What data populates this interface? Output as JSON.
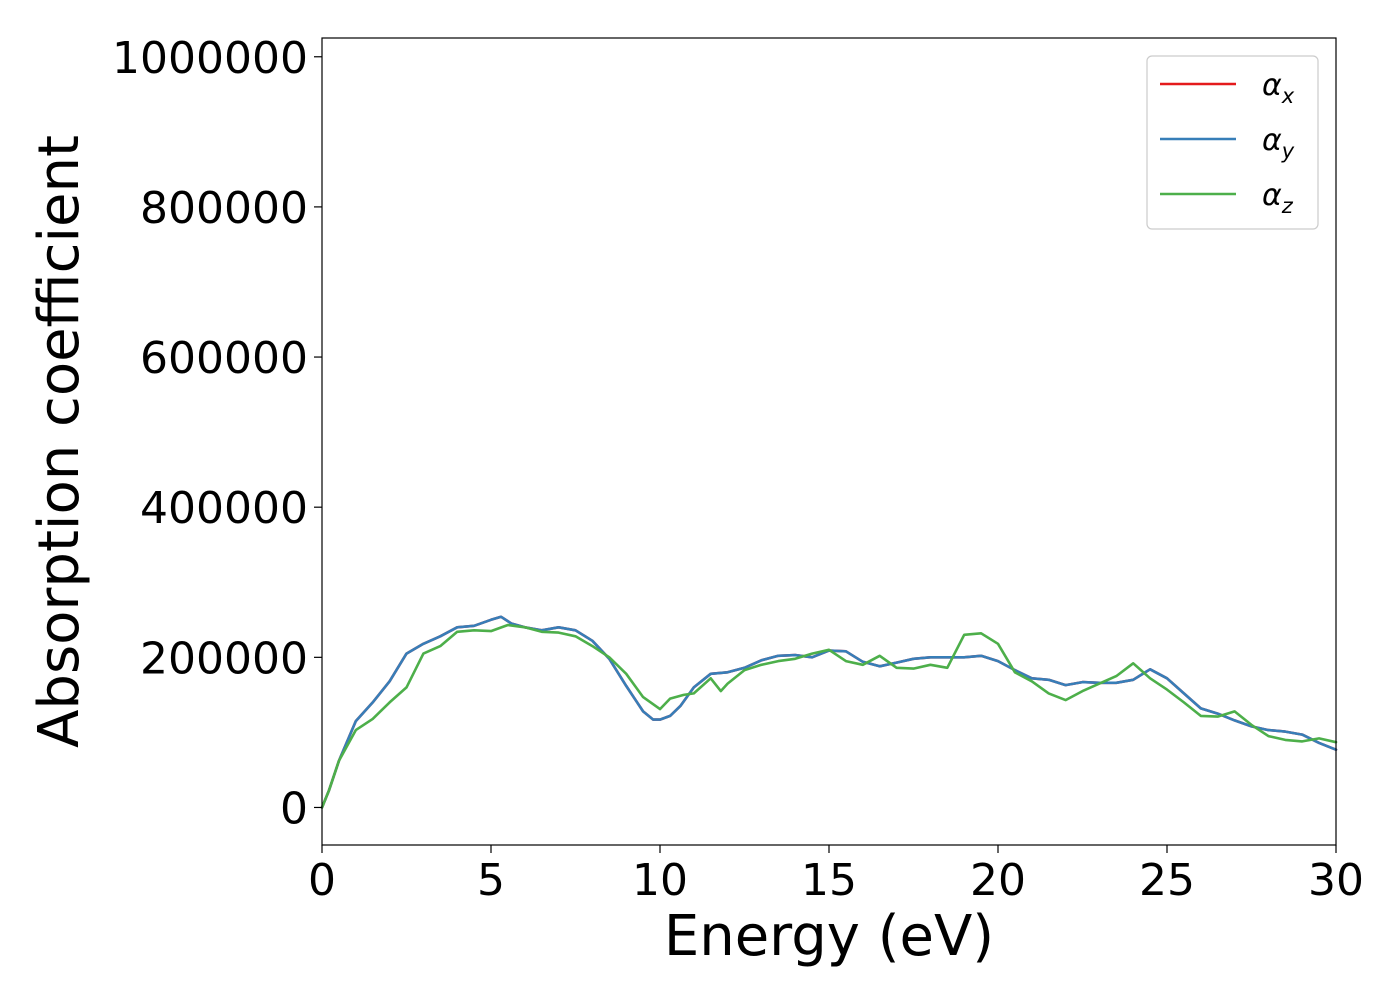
{
  "chart_data": {
    "type": "line",
    "title": "",
    "xlabel": "Energy (eV)",
    "ylabel": "Absorption coefficient",
    "xlim": [
      0,
      30
    ],
    "ylim": [
      -50000,
      1025000
    ],
    "xticks": [
      0,
      5,
      10,
      15,
      20,
      25,
      30
    ],
    "xtick_labels": [
      "0",
      "5",
      "10",
      "15",
      "20",
      "25",
      "30"
    ],
    "yticks": [
      0,
      200000,
      400000,
      600000,
      800000,
      1000000
    ],
    "ytick_labels": [
      "0",
      "200000",
      "400000",
      "600000",
      "800000",
      "1000000"
    ],
    "grid": false,
    "legend_position": "top-right",
    "series": [
      {
        "name": "α_x",
        "legend_main": "α",
        "legend_sub": "x",
        "color": "#e41a1c",
        "x": [
          0,
          0.2,
          0.5,
          1,
          1.5,
          2,
          2.5,
          3,
          3.5,
          4,
          4.5,
          5,
          5.3,
          5.6,
          6,
          6.5,
          7,
          7.5,
          8,
          8.5,
          9,
          9.5,
          9.8,
          10,
          10.3,
          10.6,
          11,
          11.5,
          12,
          12.5,
          13,
          13.5,
          14,
          14.5,
          15,
          15.5,
          16,
          16.5,
          17,
          17.5,
          18,
          18.5,
          19,
          19.5,
          20,
          20.5,
          21,
          21.5,
          22,
          22.5,
          23,
          23.5,
          24,
          24.5,
          25,
          25.5,
          26,
          26.5,
          27,
          27.5,
          28,
          28.5,
          29,
          29.5,
          30
        ],
        "y": [
          0,
          22000,
          62000,
          115000,
          140000,
          168000,
          205000,
          218000,
          228000,
          240000,
          242000,
          250000,
          254000,
          245000,
          240000,
          236000,
          240000,
          236000,
          222000,
          198000,
          162000,
          128000,
          117000,
          117000,
          122000,
          135000,
          160000,
          178000,
          180000,
          186000,
          196000,
          202000,
          203000,
          200000,
          209000,
          208000,
          194000,
          188000,
          193000,
          198000,
          200000,
          200000,
          200000,
          202000,
          195000,
          183000,
          172000,
          170000,
          163000,
          167000,
          166000,
          166000,
          170000,
          184000,
          172000,
          152000,
          132000,
          125000,
          116000,
          108000,
          103000,
          101000,
          97000,
          86000,
          77000
        ]
      },
      {
        "name": "α_y",
        "legend_main": "α",
        "legend_sub": "y",
        "color": "#377eb8",
        "x": [
          0,
          0.2,
          0.5,
          1,
          1.5,
          2,
          2.5,
          3,
          3.5,
          4,
          4.5,
          5,
          5.3,
          5.6,
          6,
          6.5,
          7,
          7.5,
          8,
          8.5,
          9,
          9.5,
          9.8,
          10,
          10.3,
          10.6,
          11,
          11.5,
          12,
          12.5,
          13,
          13.5,
          14,
          14.5,
          15,
          15.5,
          16,
          16.5,
          17,
          17.5,
          18,
          18.5,
          19,
          19.5,
          20,
          20.5,
          21,
          21.5,
          22,
          22.5,
          23,
          23.5,
          24,
          24.5,
          25,
          25.5,
          26,
          26.5,
          27,
          27.5,
          28,
          28.5,
          29,
          29.5,
          30
        ],
        "y": [
          0,
          22000,
          62000,
          115000,
          140000,
          168000,
          205000,
          218000,
          228000,
          240000,
          242000,
          250000,
          254000,
          245000,
          240000,
          236000,
          240000,
          236000,
          222000,
          198000,
          162000,
          128000,
          117000,
          117000,
          122000,
          135000,
          160000,
          178000,
          180000,
          186000,
          196000,
          202000,
          203000,
          200000,
          209000,
          208000,
          194000,
          188000,
          193000,
          198000,
          200000,
          200000,
          200000,
          202000,
          195000,
          183000,
          172000,
          170000,
          163000,
          167000,
          166000,
          166000,
          170000,
          184000,
          172000,
          152000,
          132000,
          125000,
          116000,
          108000,
          103000,
          101000,
          97000,
          86000,
          77000
        ]
      },
      {
        "name": "α_z",
        "legend_main": "α",
        "legend_sub": "z",
        "color": "#4daf4a",
        "x": [
          0,
          0.2,
          0.5,
          1,
          1.5,
          2,
          2.5,
          3,
          3.5,
          4,
          4.5,
          5,
          5.5,
          6,
          6.5,
          7,
          7.5,
          8,
          8.5,
          9,
          9.5,
          10,
          10.3,
          10.7,
          11,
          11.5,
          11.8,
          12,
          12.5,
          13,
          13.5,
          14,
          14.5,
          15,
          15.5,
          16,
          16.5,
          17,
          17.5,
          18,
          18.5,
          19,
          19.5,
          20,
          20.5,
          21,
          21.5,
          22,
          22.5,
          23,
          23.5,
          24,
          24.5,
          25,
          25.5,
          26,
          26.5,
          27,
          27.5,
          28,
          28.5,
          29,
          29.5,
          30
        ],
        "y": [
          0,
          22000,
          62000,
          103000,
          118000,
          140000,
          160000,
          205000,
          215000,
          234000,
          236000,
          235000,
          243000,
          240000,
          234000,
          233000,
          228000,
          215000,
          200000,
          178000,
          147000,
          131000,
          145000,
          150000,
          152000,
          172000,
          155000,
          165000,
          183000,
          190000,
          195000,
          198000,
          205000,
          210000,
          195000,
          190000,
          202000,
          186000,
          185000,
          190000,
          186000,
          230000,
          232000,
          218000,
          180000,
          168000,
          152000,
          143000,
          155000,
          165000,
          175000,
          192000,
          172000,
          157000,
          140000,
          122000,
          121000,
          128000,
          110000,
          95000,
          90000,
          88000,
          92000,
          87000
        ]
      }
    ]
  }
}
